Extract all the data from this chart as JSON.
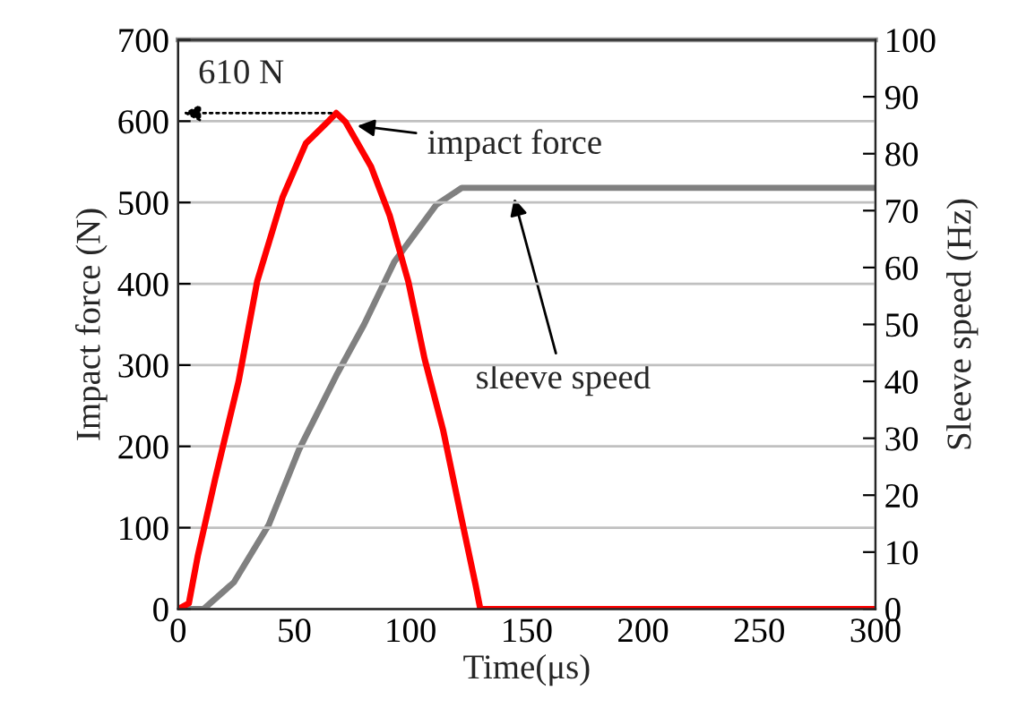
{
  "chart_data": {
    "type": "line",
    "xlabel": "Time(μs)",
    "ylabel": "Impact force (N)",
    "y2label": "Sleeve speed (Hz)",
    "xlim": [
      0,
      300
    ],
    "xticks": [
      0,
      50,
      100,
      150,
      200,
      250,
      300
    ],
    "ylim": [
      0,
      700
    ],
    "yticks": [
      0,
      100,
      200,
      300,
      400,
      500,
      600,
      700
    ],
    "y2lim": [
      0,
      100
    ],
    "y2ticks": [
      0,
      10,
      20,
      30,
      40,
      50,
      60,
      70,
      80,
      90,
      100
    ],
    "grid": "y",
    "legend": false,
    "marker": "none",
    "line_style": "solid",
    "series": [
      {
        "color": "#ff0000",
        "x": [
          0,
          4.6,
          8.5,
          16,
          26,
          34,
          45,
          55,
          65,
          68,
          72,
          83,
          91,
          99,
          106,
          114,
          122,
          128,
          130,
          300
        ],
        "values": [
          0,
          7,
          66,
          161,
          280,
          403,
          507,
          573,
          601,
          610,
          599,
          544,
          484,
          403,
          308,
          220,
          110,
          29,
          0,
          0
        ]
      },
      {
        "color": "#808080",
        "axis": "y2",
        "x": [
          0,
          11,
          24,
          39,
          52,
          68,
          80,
          93,
          111,
          122,
          300
        ],
        "values": [
          0,
          0,
          4.7,
          14.8,
          28,
          41,
          50,
          61,
          71,
          74,
          74
        ]
      }
    ],
    "annotations": [
      {
        "text": "610 N",
        "x": 68,
        "y": 610
      },
      {
        "text": "impact force",
        "x": 75,
        "y": 595
      },
      "sleeve speed"
    ]
  }
}
